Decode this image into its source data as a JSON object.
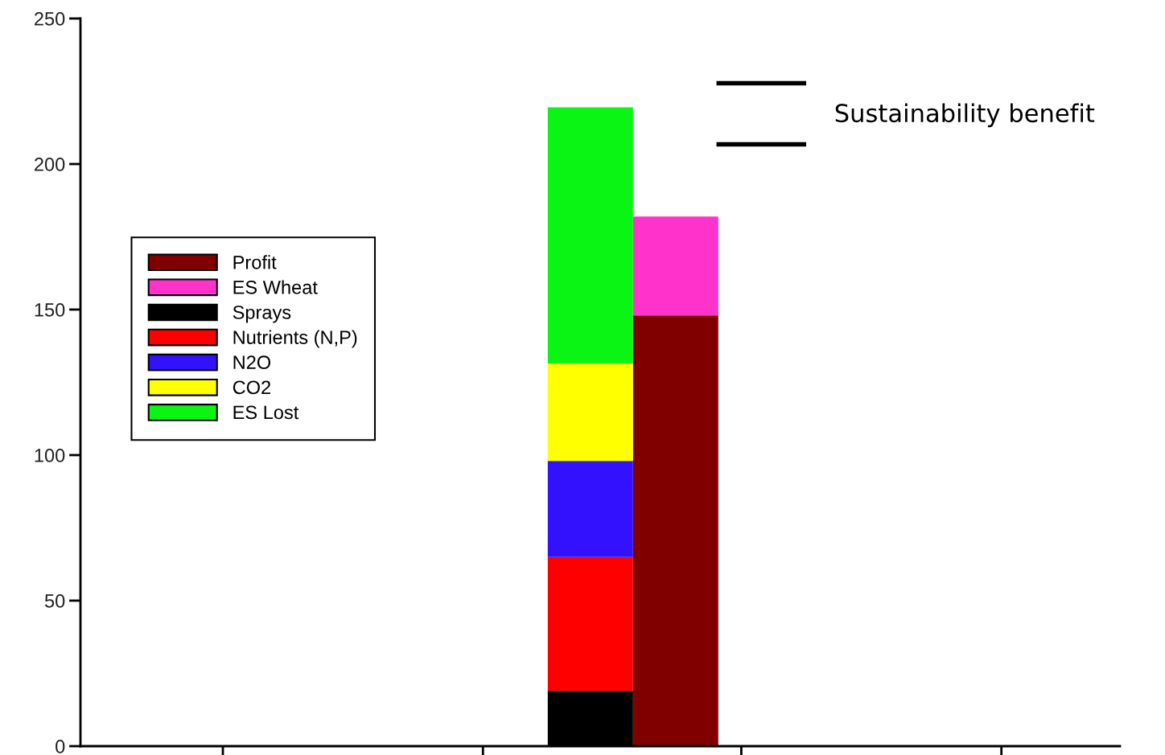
{
  "chart_data": {
    "type": "bar",
    "stacked": true,
    "categories": [
      null,
      null
    ],
    "ylim": [
      0,
      250
    ],
    "yticks": [
      0,
      50,
      100,
      150,
      200,
      250
    ],
    "tick_labels": "y",
    "grid": false,
    "legend": "left",
    "annotations": [
      "Sustainability benefit"
    ],
    "series": [
      {
        "name": "Profit",
        "color": "#800000",
        "values": [
          0,
          148
        ]
      },
      {
        "name": "ES Wheat",
        "color": "#ff33cc",
        "values": [
          0,
          34
        ]
      },
      {
        "name": "Sprays",
        "color": "#000000",
        "values": [
          19,
          0
        ]
      },
      {
        "name": "Nutrients (N,P)",
        "color": "#ff0000",
        "values": [
          46,
          0
        ]
      },
      {
        "name": "N2O",
        "color": "#3311ff",
        "values": [
          33,
          0
        ]
      },
      {
        "name": "CO2",
        "color": "#ffff00",
        "values": [
          33.5,
          0
        ]
      },
      {
        "name": "ES Lost",
        "color": "#0af513",
        "values": [
          88,
          0
        ]
      }
    ]
  }
}
